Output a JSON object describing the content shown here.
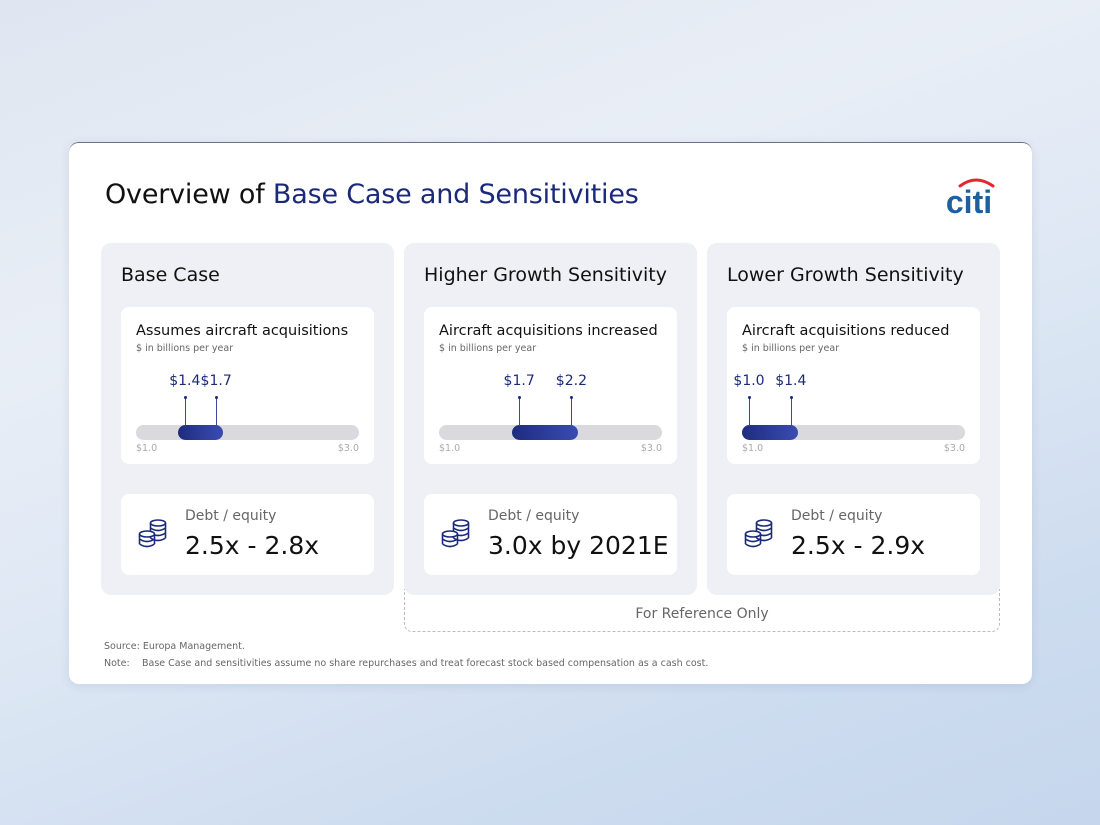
{
  "slide": {
    "title_prefix": "Overview of ",
    "title_accent": "Base Case and Sensitivities",
    "logo_text": "citi"
  },
  "colors": {
    "accent": "#1b2a78",
    "bar_fill": "#2a3a9a",
    "track": "#d9d9de",
    "logo_arc": "#e0282e",
    "logo_text": "#1f5f9e"
  },
  "axis": {
    "min": 1.0,
    "max": 3.0,
    "min_label": "$1.0",
    "max_label": "$3.0"
  },
  "columns": [
    {
      "title": "Base Case",
      "card_title": "Assumes aircraft acquisitions",
      "card_subtitle": "$ in billions per year",
      "low": 1.4,
      "high": 1.7,
      "low_label": "$1.4",
      "high_label": "$1.7",
      "debt_label": "Debt / equity",
      "debt_value": "2.5x - 2.8x",
      "icon": "coins-stack-icon"
    },
    {
      "title": "Higher Growth Sensitivity",
      "card_title": "Aircraft acquisitions increased",
      "card_subtitle": "$ in billions per year",
      "low": 1.7,
      "high": 2.2,
      "low_label": "$1.7",
      "high_label": "$2.2",
      "debt_label": "Debt / equity",
      "debt_value": "3.0x by 2021E",
      "icon": "coins-stack-icon"
    },
    {
      "title": "Lower Growth Sensitivity",
      "card_title": "Aircraft acquisitions reduced",
      "card_subtitle": "$ in billions per year",
      "low": 1.0,
      "high": 1.4,
      "low_label": "$1.0",
      "high_label": "$1.4",
      "debt_label": "Debt / equity",
      "debt_value": "2.5x - 2.9x",
      "icon": "coins-stack-icon"
    }
  ],
  "reference_note": "For Reference Only",
  "footnotes": {
    "source": "Source: Europa Management.",
    "note_key": "Note:",
    "note_text": "Base Case and sensitivities assume no share repurchases and treat forecast stock based compensation as a cash cost."
  }
}
